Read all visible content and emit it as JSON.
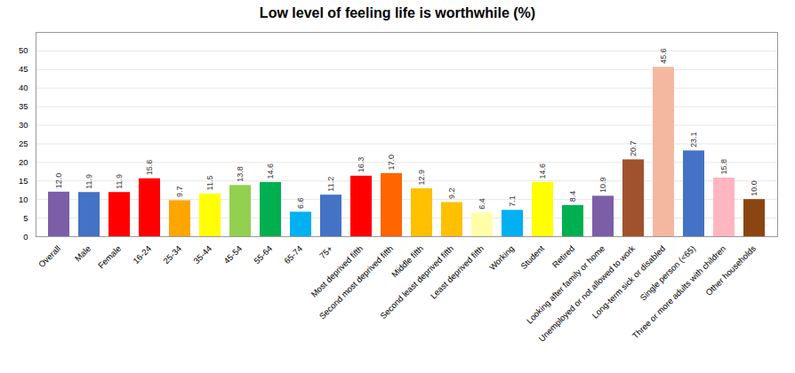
{
  "chart_data": {
    "type": "bar",
    "title": "Low level of feeling life is worthwhile (%)",
    "categories": [
      "Overall",
      "Male",
      "Female",
      "16-24",
      "25-34",
      "35-44",
      "45-54",
      "55-64",
      "65-74",
      "75+",
      "Most deprived fifth",
      "Second most deprived fifth",
      "Middle fifth",
      "Second least deprived fifth",
      "Least deprived fifth",
      "Working",
      "Student",
      "Retired",
      "Looking after family or home",
      "Unemployed or not allowed to work",
      "Long-term sick or disabled",
      "Single person (<65)",
      "Three or more adults with children",
      "Other households"
    ],
    "values": [
      12.0,
      11.9,
      11.9,
      15.6,
      9.7,
      11.5,
      13.8,
      14.6,
      6.6,
      11.2,
      16.3,
      17.0,
      12.9,
      9.2,
      6.4,
      7.1,
      14.6,
      8.4,
      10.9,
      20.7,
      45.6,
      23.1,
      15.8,
      10.0
    ],
    "value_labels": [
      "12.0",
      "11.9",
      "11.9",
      "15.6",
      "9.7",
      "11.5",
      "13.8",
      "14.6",
      "6.6",
      "11.2",
      "16.3",
      "17.0",
      "12.9",
      "9.2",
      "6.4",
      "7.1",
      "14.6",
      "8.4",
      "10.9",
      "20.7",
      "45.6",
      "23.1",
      "15.8",
      "10.0"
    ],
    "colors": [
      "#7B5EA7",
      "#4472C4",
      "#FF0000",
      "#FF0000",
      "#FFA500",
      "#FFFF00",
      "#92D050",
      "#00B050",
      "#00B0F0",
      "#4472C4",
      "#FF0000",
      "#FF6600",
      "#FFC000",
      "#FFC000",
      "#FFFFAA",
      "#00B0F0",
      "#FFFF00",
      "#00B050",
      "#7B5EA7",
      "#A0522D",
      "#F4B8A0",
      "#4472C4",
      "#FFB6C1",
      "#8B4513"
    ],
    "ylim": [
      0,
      55
    ],
    "yticks": [
      0,
      5,
      10,
      15,
      20,
      25,
      30,
      35,
      40,
      45,
      50
    ],
    "grid": true,
    "data_labels": true
  }
}
